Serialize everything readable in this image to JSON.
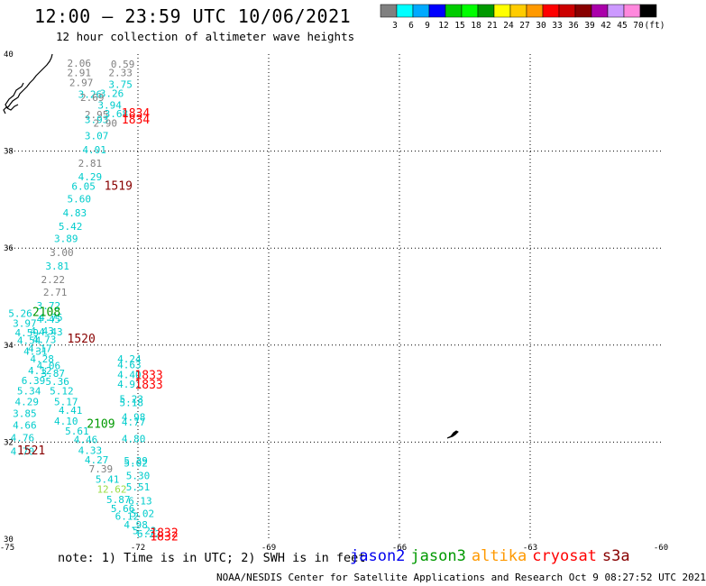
{
  "header": {
    "title": "12:00 — 23:59 UTC 10/06/2021",
    "subtitle": "12 hour collection of altimeter wave heights"
  },
  "colorbar": {
    "colors": [
      "#808080",
      "#00ffff",
      "#00aaff",
      "#0000ff",
      "#00cc00",
      "#00ff00",
      "#009900",
      "#ffff00",
      "#ffcc00",
      "#ff9900",
      "#ff0000",
      "#cc0000",
      "#880000",
      "#aa00aa",
      "#cc99ff",
      "#ff88dd",
      "#000000"
    ],
    "labels": [
      "3",
      "6",
      "9",
      "12",
      "15",
      "18",
      "21",
      "24",
      "27",
      "30",
      "33",
      "36",
      "39",
      "42",
      "45",
      "70",
      "(ft)"
    ]
  },
  "axes": {
    "lon_ticks": [
      "-75",
      "-72",
      "-69",
      "-66",
      "-63",
      "-60"
    ],
    "lat_ticks": [
      "40",
      "38",
      "36",
      "34",
      "32",
      "30"
    ]
  },
  "chart_data": {
    "type": "scatter",
    "xlim": [
      -75,
      -60
    ],
    "ylim": [
      30,
      40
    ],
    "grid": true,
    "track_times": [
      {
        "label": "1834",
        "lon": -72.05,
        "lat": 38.7,
        "color": "#ff0000"
      },
      {
        "label": "1834",
        "lon": -72.05,
        "lat": 38.57,
        "color": "#ff0000"
      },
      {
        "label": "1519",
        "lon": -72.45,
        "lat": 37.2,
        "color": "#880000"
      },
      {
        "label": "2108",
        "lon": -74.1,
        "lat": 34.6,
        "color": "#009900"
      },
      {
        "label": "1520",
        "lon": -73.3,
        "lat": 34.05,
        "color": "#880000"
      },
      {
        "label": "1833",
        "lon": -71.75,
        "lat": 33.3,
        "color": "#ff0000"
      },
      {
        "label": "1833",
        "lon": -71.75,
        "lat": 33.1,
        "color": "#ff0000"
      },
      {
        "label": "2109",
        "lon": -72.85,
        "lat": 32.3,
        "color": "#009900"
      },
      {
        "label": "1521",
        "lon": -74.45,
        "lat": 31.75,
        "color": "#880000"
      },
      {
        "label": "1832",
        "lon": -71.4,
        "lat": 30.05,
        "color": "#ff0000"
      },
      {
        "label": "1832",
        "lon": -71.4,
        "lat": 29.97,
        "color": "#ff0000"
      }
    ],
    "points": [
      {
        "label": "2.06",
        "lon": -73.35,
        "lat": 39.74,
        "color": "#808080"
      },
      {
        "label": "0.59",
        "lon": -72.35,
        "lat": 39.72,
        "color": "#808080"
      },
      {
        "label": "2.91",
        "lon": -73.35,
        "lat": 39.54,
        "color": "#808080"
      },
      {
        "label": "2.33",
        "lon": -72.4,
        "lat": 39.54,
        "color": "#808080"
      },
      {
        "label": "2.97",
        "lon": -73.3,
        "lat": 39.34,
        "color": "#808080"
      },
      {
        "label": "3.75",
        "lon": -72.4,
        "lat": 39.3,
        "color": "#00cccc"
      },
      {
        "label": "3.26",
        "lon": -73.1,
        "lat": 39.1,
        "color": "#00cccc"
      },
      {
        "label": "3.26",
        "lon": -72.6,
        "lat": 39.12,
        "color": "#00cccc"
      },
      {
        "label": "2.69",
        "lon": -73.05,
        "lat": 39.03,
        "color": "#808080"
      },
      {
        "label": "3.94",
        "lon": -72.65,
        "lat": 38.88,
        "color": "#00cccc"
      },
      {
        "label": "2.95",
        "lon": -72.95,
        "lat": 38.68,
        "color": "#808080"
      },
      {
        "label": "3.68",
        "lon": -72.5,
        "lat": 38.7,
        "color": "#00cccc"
      },
      {
        "label": "3.93",
        "lon": -72.95,
        "lat": 38.58,
        "color": "#00cccc"
      },
      {
        "label": "2.90",
        "lon": -72.75,
        "lat": 38.5,
        "color": "#808080"
      },
      {
        "label": "3.07",
        "lon": -72.95,
        "lat": 38.24,
        "color": "#00cccc"
      },
      {
        "label": "4.01",
        "lon": -73.0,
        "lat": 37.96,
        "color": "#00cccc"
      },
      {
        "label": "2.81",
        "lon": -73.1,
        "lat": 37.68,
        "color": "#808080"
      },
      {
        "label": "4.29",
        "lon": -73.1,
        "lat": 37.4,
        "color": "#00cccc"
      },
      {
        "label": "6.05",
        "lon": -73.25,
        "lat": 37.2,
        "color": "#00cccc"
      },
      {
        "label": "5.60",
        "lon": -73.35,
        "lat": 36.94,
        "color": "#00cccc"
      },
      {
        "label": "4.83",
        "lon": -73.45,
        "lat": 36.65,
        "color": "#00cccc"
      },
      {
        "label": "5.42",
        "lon": -73.55,
        "lat": 36.38,
        "color": "#00cccc"
      },
      {
        "label": "3.89",
        "lon": -73.65,
        "lat": 36.12,
        "color": "#00cccc"
      },
      {
        "label": "3.00",
        "lon": -73.75,
        "lat": 35.84,
        "color": "#808080"
      },
      {
        "label": "3.81",
        "lon": -73.85,
        "lat": 35.56,
        "color": "#00cccc"
      },
      {
        "label": "2.22",
        "lon": -73.95,
        "lat": 35.28,
        "color": "#808080"
      },
      {
        "label": "2.71",
        "lon": -73.9,
        "lat": 35.02,
        "color": "#808080"
      },
      {
        "label": "3.72",
        "lon": -74.05,
        "lat": 34.74,
        "color": "#00cccc"
      },
      {
        "label": "4.45",
        "lon": -74.05,
        "lat": 34.46,
        "color": "#00cccc"
      },
      {
        "label": "4.43",
        "lon": -74.0,
        "lat": 34.2,
        "color": "#00cccc"
      },
      {
        "label": "5.26",
        "lon": -74.7,
        "lat": 34.58,
        "color": "#00cccc"
      },
      {
        "label": "4.75",
        "lon": -74.0,
        "lat": 34.5,
        "color": "#00cccc"
      },
      {
        "label": "3.97",
        "lon": -74.6,
        "lat": 34.38,
        "color": "#00cccc"
      },
      {
        "label": "4.43",
        "lon": -74.2,
        "lat": 34.22,
        "color": "#00cccc"
      },
      {
        "label": "4.59",
        "lon": -74.55,
        "lat": 34.18,
        "color": "#00cccc"
      },
      {
        "label": "4.73",
        "lon": -74.15,
        "lat": 34.04,
        "color": "#00cccc"
      },
      {
        "label": "4.54",
        "lon": -74.5,
        "lat": 34.02,
        "color": "#00cccc"
      },
      {
        "label": "4.17",
        "lon": -74.25,
        "lat": 33.86,
        "color": "#00cccc"
      },
      {
        "label": "4.31",
        "lon": -74.35,
        "lat": 33.8,
        "color": "#00cccc"
      },
      {
        "label": "4.28",
        "lon": -74.2,
        "lat": 33.64,
        "color": "#00cccc"
      },
      {
        "label": "4.06",
        "lon": -74.05,
        "lat": 33.5,
        "color": "#00cccc"
      },
      {
        "label": "4.12",
        "lon": -74.25,
        "lat": 33.4,
        "color": "#00cccc"
      },
      {
        "label": "3.87",
        "lon": -73.95,
        "lat": 33.35,
        "color": "#00cccc"
      },
      {
        "label": "6.39",
        "lon": -74.4,
        "lat": 33.2,
        "color": "#00cccc"
      },
      {
        "label": "5.36",
        "lon": -73.85,
        "lat": 33.18,
        "color": "#00cccc"
      },
      {
        "label": "5.34",
        "lon": -74.5,
        "lat": 32.98,
        "color": "#00cccc"
      },
      {
        "label": "5.12",
        "lon": -73.75,
        "lat": 32.98,
        "color": "#00cccc"
      },
      {
        "label": "4.29",
        "lon": -74.55,
        "lat": 32.76,
        "color": "#00cccc"
      },
      {
        "label": "5.17",
        "lon": -73.65,
        "lat": 32.76,
        "color": "#00cccc"
      },
      {
        "label": "4.41",
        "lon": -73.55,
        "lat": 32.58,
        "color": "#00cccc"
      },
      {
        "label": "3.85",
        "lon": -74.6,
        "lat": 32.52,
        "color": "#00cccc"
      },
      {
        "label": "4.10",
        "lon": -73.65,
        "lat": 32.36,
        "color": "#00cccc"
      },
      {
        "label": "4.66",
        "lon": -74.6,
        "lat": 32.28,
        "color": "#00cccc"
      },
      {
        "label": "5.61",
        "lon": -73.4,
        "lat": 32.16,
        "color": "#00cccc"
      },
      {
        "label": "4.76",
        "lon": -74.65,
        "lat": 32.02,
        "color": "#00cccc"
      },
      {
        "label": "4.46",
        "lon": -73.2,
        "lat": 31.98,
        "color": "#00cccc"
      },
      {
        "label": "4.70",
        "lon": -74.65,
        "lat": 31.74,
        "color": "#00cccc"
      },
      {
        "label": "4.33",
        "lon": -73.1,
        "lat": 31.76,
        "color": "#00cccc"
      },
      {
        "label": "4.27",
        "lon": -72.95,
        "lat": 31.56,
        "color": "#00cccc"
      },
      {
        "label": "7.39",
        "lon": -72.85,
        "lat": 31.38,
        "color": "#808080"
      },
      {
        "label": "5.41",
        "lon": -72.7,
        "lat": 31.16,
        "color": "#00cccc"
      },
      {
        "label": "12.62",
        "lon": -72.6,
        "lat": 30.96,
        "color": "#99dd44"
      },
      {
        "label": "5.87",
        "lon": -72.45,
        "lat": 30.74,
        "color": "#00cccc"
      },
      {
        "label": "5.66",
        "lon": -72.35,
        "lat": 30.56,
        "color": "#00cccc"
      },
      {
        "label": "6.12",
        "lon": -72.25,
        "lat": 30.4,
        "color": "#00cccc"
      },
      {
        "label": "4.98",
        "lon": -72.05,
        "lat": 30.22,
        "color": "#00cccc"
      },
      {
        "label": "4.24",
        "lon": -72.2,
        "lat": 33.64,
        "color": "#00cccc"
      },
      {
        "label": "4.63",
        "lon": -72.2,
        "lat": 33.52,
        "color": "#00cccc"
      },
      {
        "label": "4.40",
        "lon": -72.2,
        "lat": 33.32,
        "color": "#00cccc"
      },
      {
        "label": "4.91",
        "lon": -72.2,
        "lat": 33.12,
        "color": "#00cccc"
      },
      {
        "label": "5.23",
        "lon": -72.15,
        "lat": 32.82,
        "color": "#00cccc"
      },
      {
        "label": "5.18",
        "lon": -72.15,
        "lat": 32.74,
        "color": "#00cccc"
      },
      {
        "label": "4.98",
        "lon": -72.1,
        "lat": 32.44,
        "color": "#00cccc"
      },
      {
        "label": "4.77",
        "lon": -72.1,
        "lat": 32.34,
        "color": "#00cccc"
      },
      {
        "label": "4.80",
        "lon": -72.1,
        "lat": 32.0,
        "color": "#00cccc"
      },
      {
        "label": "5.39",
        "lon": -72.05,
        "lat": 31.54,
        "color": "#00cccc"
      },
      {
        "label": "5.02",
        "lon": -72.05,
        "lat": 31.5,
        "color": "#00cccc"
      },
      {
        "label": "5.30",
        "lon": -72.0,
        "lat": 31.24,
        "color": "#00cccc"
      },
      {
        "label": "5.51",
        "lon": -72.0,
        "lat": 31.0,
        "color": "#00cccc"
      },
      {
        "label": "6.13",
        "lon": -71.95,
        "lat": 30.72,
        "color": "#00cccc"
      },
      {
        "label": "5.02",
        "lon": -71.9,
        "lat": 30.46,
        "color": "#00cccc"
      },
      {
        "label": "5.22",
        "lon": -71.85,
        "lat": 30.1,
        "color": "#00cccc"
      },
      {
        "label": "6.22",
        "lon": -71.75,
        "lat": 30.04,
        "color": "#00cccc"
      }
    ]
  },
  "footer": {
    "note": "note:  1) Time is in UTC; 2) SWH is in feet",
    "legend": [
      {
        "label": "jason2",
        "color": "#0000ee"
      },
      {
        "label": "jason3",
        "color": "#009900"
      },
      {
        "label": "altika",
        "color": "#ff9900"
      },
      {
        "label": "cryosat",
        "color": "#ff0000"
      },
      {
        "label": "s3a",
        "color": "#880000"
      }
    ],
    "credit": "NOAA/NESDIS Center for Satellite Applications and Research   Oct  9 08:27:52 UTC 2021"
  }
}
